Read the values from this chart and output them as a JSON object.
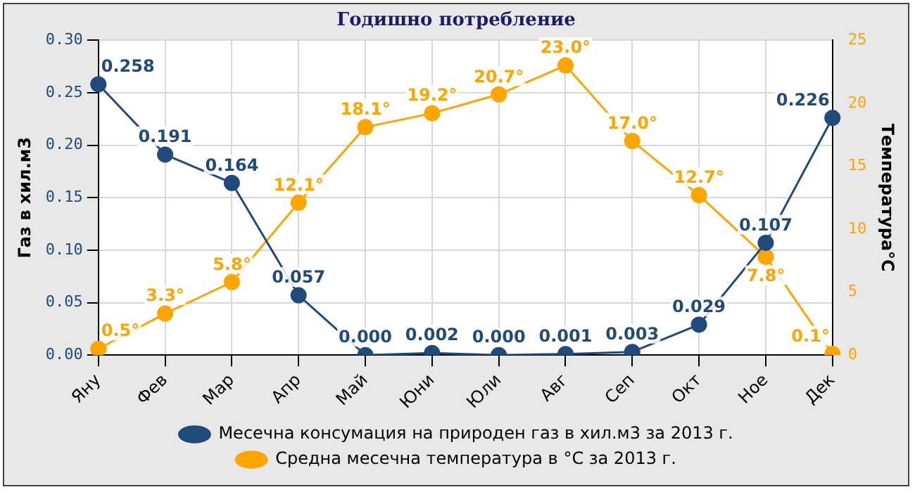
{
  "chart_data": {
    "type": "line",
    "title": "Годишно потребление",
    "ylabel": "Газ в хил.м3",
    "y2label": "Температура°C",
    "categories": [
      "Яну",
      "Фев",
      "Мар",
      "Апр",
      "Май",
      "Юни",
      "Юли",
      "Авг",
      "Сеп",
      "Окт",
      "Ное",
      "Дек"
    ],
    "series": [
      {
        "name": "Месечна консумация на природен газ в хил.м3 за 2013 г.",
        "color": "#1f4a7a",
        "values": [
          0.258,
          0.191,
          0.164,
          0.057,
          0.0,
          0.002,
          0.0,
          0.001,
          0.003,
          0.029,
          0.107,
          0.226
        ],
        "value_labels": [
          "0.258",
          "0.191",
          "0.164",
          "0.057",
          "0.000",
          "0.002",
          "0.000",
          "0.001",
          "0.003",
          "0.029",
          "0.107",
          "0.226"
        ]
      },
      {
        "name": "Средна месечна температура в °C за 2013 г.",
        "color": "#ffa500",
        "axis": "y2",
        "values": [
          0.5,
          3.3,
          5.8,
          12.1,
          18.1,
          19.2,
          20.7,
          23.0,
          17.0,
          12.7,
          7.8,
          0.1
        ],
        "value_labels": [
          "0.5°",
          "3.3°",
          "5.8°",
          "12.1°",
          "18.1°",
          "19.2°",
          "20.7°",
          "23.0°",
          "17.0°",
          "12.7°",
          "7.8°",
          "0.1°"
        ]
      }
    ],
    "ylim": [
      0,
      0.3
    ],
    "yticks": [
      {
        "value": 0,
        "label": "0.00"
      },
      {
        "value": 0.05,
        "label": "0.05"
      },
      {
        "value": 0.1,
        "label": "0.10"
      },
      {
        "value": 0.15,
        "label": "0.15"
      },
      {
        "value": 0.2,
        "label": "0.20"
      },
      {
        "value": 0.25,
        "label": "0.25"
      },
      {
        "value": 0.3,
        "label": "0.30"
      }
    ],
    "y2lim": [
      0,
      25
    ],
    "y2ticks": [
      0,
      5,
      10,
      15,
      20,
      25
    ],
    "grid": true,
    "legend": "bottom",
    "marker": "circle",
    "line_style": "solid"
  }
}
